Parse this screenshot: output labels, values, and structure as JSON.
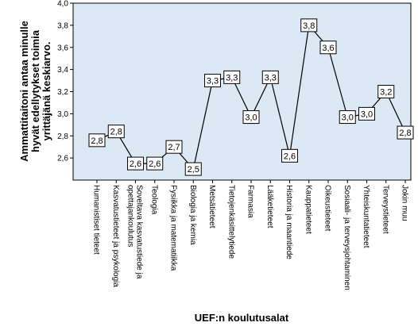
{
  "chart_data": {
    "type": "line",
    "xlabel": "UEF:n koulutusalat",
    "ylabel_lines": [
      "Ammattitaitoni antaa minulle",
      "hyvät edellytykset toimia",
      "yrittäjänä keskiarvo."
    ],
    "ylim": [
      2.4,
      4.0
    ],
    "yticks": [
      "2,6",
      "2,8",
      "3,0",
      "3,2",
      "3,4",
      "3,6",
      "3,8",
      "4,0"
    ],
    "ytick_values": [
      2.6,
      2.8,
      3.0,
      3.2,
      3.4,
      3.6,
      3.8,
      4.0
    ],
    "grid": false,
    "categories": [
      [
        "Humanistiset tieteet"
      ],
      [
        "Kasvatustieteet ja psykologia"
      ],
      [
        "Soveltava kasvatustiede ja",
        "opettajankoulutus"
      ],
      [
        "Teologia"
      ],
      [
        "Fysiikka ja matematiikka"
      ],
      [
        "Biologia ja kemia"
      ],
      [
        "Metsätieteet"
      ],
      [
        "Tietojenkäsittelytiede"
      ],
      [
        "Farmasia"
      ],
      [
        "Lääketieteet"
      ],
      [
        "Historia ja maantiede"
      ],
      [
        "Kauppatieteet"
      ],
      [
        "Oikeustieteet"
      ],
      [
        "Sosiaali- ja terveysjohtaminen"
      ],
      [
        "Yhteiskuntatieteet"
      ],
      [
        "Terveystieteet"
      ],
      [
        "Jokin muu"
      ]
    ],
    "values": [
      2.76,
      2.84,
      2.55,
      2.55,
      2.7,
      2.5,
      3.3,
      3.33,
      2.97,
      3.33,
      2.62,
      3.8,
      3.6,
      2.97,
      3.0,
      3.2,
      2.83
    ],
    "value_labels": [
      "2,8",
      "2,8",
      "2,6",
      "2,6",
      "2,7",
      "2,5",
      "3,3",
      "3,3",
      "3,0",
      "3,3",
      "2,6",
      "3,8",
      "3,6",
      "3,0",
      "3,0",
      "3,2",
      "2,8"
    ]
  }
}
